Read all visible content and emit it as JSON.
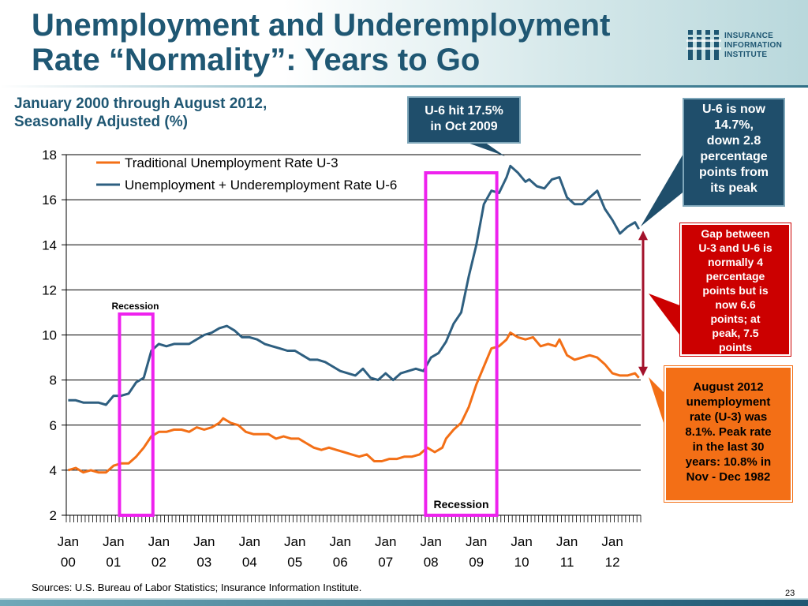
{
  "title": {
    "line1": "Unemployment and Underemployment",
    "line2": "Rate “Normality”: Years to Go"
  },
  "logo": {
    "icon": "iii-logo-icon",
    "line1": "INSURANCE",
    "line2": "INFORMATION",
    "line3": "INSTITUTE"
  },
  "subtitle": {
    "line1": "January 2000 through August 2012,",
    "line2": "Seasonally Adjusted (%)"
  },
  "callouts": {
    "peak": [
      "U-6 hit 17.5%",
      "in  Oct 2009"
    ],
    "now": [
      "U-6 is now",
      "14.7%,",
      "down 2.8",
      "percentage",
      "points from",
      "its peak"
    ],
    "gap": [
      "Gap between",
      "U-3 and U-6 is",
      "normally 4",
      "percentage",
      "points but is",
      "now 6.6",
      "points; at",
      "peak, 7.5",
      "points"
    ],
    "aug": [
      "August 2012",
      "unemployment",
      "rate (U-3) was",
      "8.1%. Peak rate",
      "in the last 30",
      "years: 10.8% in",
      "Nov - Dec 1982"
    ]
  },
  "colors": {
    "title": "#1f5773",
    "u3": "#f36f16",
    "u6": "#2e5f80",
    "recession": "#ee22ee",
    "gap_arrow": "#a3122b",
    "callout_blue": "#1f4e6b",
    "callout_red": "#cc0000",
    "callout_orange": "#f36f16"
  },
  "chart_data": {
    "type": "line",
    "x_range": [
      "2000-01",
      "2012-08"
    ],
    "ylim": [
      2,
      18
    ],
    "yticks": [
      2,
      4,
      6,
      8,
      10,
      12,
      14,
      16,
      18
    ],
    "xtick_labels": [
      {
        "month": "Jan",
        "year": "00"
      },
      {
        "month": "Jan",
        "year": "01"
      },
      {
        "month": "Jan",
        "year": "02"
      },
      {
        "month": "Jan",
        "year": "03"
      },
      {
        "month": "Jan",
        "year": "04"
      },
      {
        "month": "Jan",
        "year": "05"
      },
      {
        "month": "Jan",
        "year": "06"
      },
      {
        "month": "Jan",
        "year": "07"
      },
      {
        "month": "Jan",
        "year": "08"
      },
      {
        "month": "Jan",
        "year": "09"
      },
      {
        "month": "Jan",
        "year": "10"
      },
      {
        "month": "Jan",
        "year": "11"
      },
      {
        "month": "Jan",
        "year": "12"
      }
    ],
    "grid": "horizontal",
    "legend_position": "top-left",
    "series": [
      {
        "name": "Traditional Unemployment Rate U-3",
        "key": "u3",
        "points": [
          [
            "2000-01",
            4.0
          ],
          [
            "2000-03",
            4.1
          ],
          [
            "2000-05",
            3.9
          ],
          [
            "2000-07",
            4.0
          ],
          [
            "2000-09",
            3.9
          ],
          [
            "2000-11",
            3.9
          ],
          [
            "2001-01",
            4.2
          ],
          [
            "2001-03",
            4.3
          ],
          [
            "2001-05",
            4.3
          ],
          [
            "2001-07",
            4.6
          ],
          [
            "2001-09",
            5.0
          ],
          [
            "2001-11",
            5.5
          ],
          [
            "2002-01",
            5.7
          ],
          [
            "2002-03",
            5.7
          ],
          [
            "2002-05",
            5.8
          ],
          [
            "2002-07",
            5.8
          ],
          [
            "2002-09",
            5.7
          ],
          [
            "2002-11",
            5.9
          ],
          [
            "2003-01",
            5.8
          ],
          [
            "2003-03",
            5.9
          ],
          [
            "2003-05",
            6.1
          ],
          [
            "2003-06",
            6.3
          ],
          [
            "2003-08",
            6.1
          ],
          [
            "2003-10",
            6.0
          ],
          [
            "2003-12",
            5.7
          ],
          [
            "2004-02",
            5.6
          ],
          [
            "2004-04",
            5.6
          ],
          [
            "2004-06",
            5.6
          ],
          [
            "2004-08",
            5.4
          ],
          [
            "2004-10",
            5.5
          ],
          [
            "2004-12",
            5.4
          ],
          [
            "2005-02",
            5.4
          ],
          [
            "2005-04",
            5.2
          ],
          [
            "2005-06",
            5.0
          ],
          [
            "2005-08",
            4.9
          ],
          [
            "2005-10",
            5.0
          ],
          [
            "2005-12",
            4.9
          ],
          [
            "2006-02",
            4.8
          ],
          [
            "2006-04",
            4.7
          ],
          [
            "2006-06",
            4.6
          ],
          [
            "2006-08",
            4.7
          ],
          [
            "2006-10",
            4.4
          ],
          [
            "2006-12",
            4.4
          ],
          [
            "2007-02",
            4.5
          ],
          [
            "2007-04",
            4.5
          ],
          [
            "2007-06",
            4.6
          ],
          [
            "2007-08",
            4.6
          ],
          [
            "2007-10",
            4.7
          ],
          [
            "2007-12",
            5.0
          ],
          [
            "2008-02",
            4.8
          ],
          [
            "2008-04",
            5.0
          ],
          [
            "2008-05",
            5.4
          ],
          [
            "2008-07",
            5.8
          ],
          [
            "2008-09",
            6.1
          ],
          [
            "2008-11",
            6.8
          ],
          [
            "2009-01",
            7.8
          ],
          [
            "2009-03",
            8.6
          ],
          [
            "2009-05",
            9.4
          ],
          [
            "2009-07",
            9.5
          ],
          [
            "2009-09",
            9.8
          ],
          [
            "2009-10",
            10.1
          ],
          [
            "2009-12",
            9.9
          ],
          [
            "2010-02",
            9.8
          ],
          [
            "2010-04",
            9.9
          ],
          [
            "2010-06",
            9.5
          ],
          [
            "2010-08",
            9.6
          ],
          [
            "2010-10",
            9.5
          ],
          [
            "2010-11",
            9.8
          ],
          [
            "2011-01",
            9.1
          ],
          [
            "2011-03",
            8.9
          ],
          [
            "2011-05",
            9.0
          ],
          [
            "2011-07",
            9.1
          ],
          [
            "2011-09",
            9.0
          ],
          [
            "2011-11",
            8.7
          ],
          [
            "2012-01",
            8.3
          ],
          [
            "2012-03",
            8.2
          ],
          [
            "2012-05",
            8.2
          ],
          [
            "2012-07",
            8.3
          ],
          [
            "2012-08",
            8.1
          ]
        ]
      },
      {
        "name": "Unemployment + Underemployment Rate U-6",
        "key": "u6",
        "points": [
          [
            "2000-01",
            7.1
          ],
          [
            "2000-03",
            7.1
          ],
          [
            "2000-05",
            7.0
          ],
          [
            "2000-07",
            7.0
          ],
          [
            "2000-09",
            7.0
          ],
          [
            "2000-11",
            6.9
          ],
          [
            "2001-01",
            7.3
          ],
          [
            "2001-03",
            7.3
          ],
          [
            "2001-05",
            7.4
          ],
          [
            "2001-07",
            7.9
          ],
          [
            "2001-09",
            8.1
          ],
          [
            "2001-11",
            9.3
          ],
          [
            "2002-01",
            9.6
          ],
          [
            "2002-03",
            9.5
          ],
          [
            "2002-05",
            9.6
          ],
          [
            "2002-07",
            9.6
          ],
          [
            "2002-09",
            9.6
          ],
          [
            "2002-11",
            9.8
          ],
          [
            "2003-01",
            10.0
          ],
          [
            "2003-03",
            10.1
          ],
          [
            "2003-05",
            10.3
          ],
          [
            "2003-07",
            10.4
          ],
          [
            "2003-09",
            10.2
          ],
          [
            "2003-11",
            9.9
          ],
          [
            "2004-01",
            9.9
          ],
          [
            "2004-03",
            9.8
          ],
          [
            "2004-05",
            9.6
          ],
          [
            "2004-07",
            9.5
          ],
          [
            "2004-09",
            9.4
          ],
          [
            "2004-11",
            9.3
          ],
          [
            "2005-01",
            9.3
          ],
          [
            "2005-03",
            9.1
          ],
          [
            "2005-05",
            8.9
          ],
          [
            "2005-07",
            8.9
          ],
          [
            "2005-09",
            8.8
          ],
          [
            "2005-11",
            8.6
          ],
          [
            "2006-01",
            8.4
          ],
          [
            "2006-03",
            8.3
          ],
          [
            "2006-05",
            8.2
          ],
          [
            "2006-07",
            8.5
          ],
          [
            "2006-09",
            8.1
          ],
          [
            "2006-11",
            8.0
          ],
          [
            "2007-01",
            8.3
          ],
          [
            "2007-03",
            8.0
          ],
          [
            "2007-05",
            8.3
          ],
          [
            "2007-07",
            8.4
          ],
          [
            "2007-09",
            8.5
          ],
          [
            "2007-11",
            8.4
          ],
          [
            "2008-01",
            9.0
          ],
          [
            "2008-03",
            9.2
          ],
          [
            "2008-05",
            9.7
          ],
          [
            "2008-07",
            10.5
          ],
          [
            "2008-09",
            11.0
          ],
          [
            "2008-11",
            12.6
          ],
          [
            "2009-01",
            14.0
          ],
          [
            "2009-03",
            15.8
          ],
          [
            "2009-05",
            16.4
          ],
          [
            "2009-07",
            16.3
          ],
          [
            "2009-09",
            17.0
          ],
          [
            "2009-10",
            17.5
          ],
          [
            "2009-12",
            17.2
          ],
          [
            "2010-02",
            16.8
          ],
          [
            "2010-03",
            16.9
          ],
          [
            "2010-05",
            16.6
          ],
          [
            "2010-07",
            16.5
          ],
          [
            "2010-09",
            16.9
          ],
          [
            "2010-11",
            17.0
          ],
          [
            "2011-01",
            16.1
          ],
          [
            "2011-03",
            15.8
          ],
          [
            "2011-05",
            15.8
          ],
          [
            "2011-07",
            16.1
          ],
          [
            "2011-09",
            16.4
          ],
          [
            "2011-11",
            15.6
          ],
          [
            "2012-01",
            15.1
          ],
          [
            "2012-03",
            14.5
          ],
          [
            "2012-05",
            14.8
          ],
          [
            "2012-07",
            15.0
          ],
          [
            "2012-08",
            14.7
          ]
        ]
      }
    ],
    "recessions": [
      {
        "start": "2001-03",
        "end": "2001-11",
        "label": "Recession"
      },
      {
        "start": "2007-12",
        "end": "2009-06",
        "label": "Recession"
      }
    ]
  },
  "sources": "Sources: U.S. Bureau of Labor Statistics; Insurance Information Institute.",
  "page_number": "23"
}
